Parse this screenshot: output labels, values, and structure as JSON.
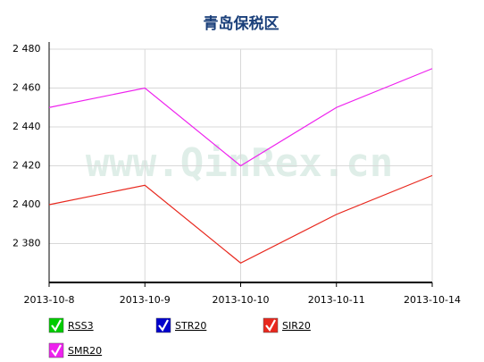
{
  "chart_data": {
    "type": "line",
    "title": "青岛保税区",
    "watermark": "www.QinRex.cn",
    "categories": [
      "2013-10-8",
      "2013-10-9",
      "2013-10-10",
      "2013-10-11",
      "2013-10-14"
    ],
    "series": [
      {
        "name": "RSS3",
        "color": "#00cc00",
        "values": [
          null,
          null,
          null,
          null,
          null
        ]
      },
      {
        "name": "STR20",
        "color": "#0000cc",
        "values": [
          null,
          null,
          null,
          null,
          null
        ]
      },
      {
        "name": "SIR20",
        "color": "#e8281e",
        "values": [
          2400,
          2410,
          2370,
          2395,
          2415
        ]
      },
      {
        "name": "SMR20",
        "color": "#ee22ee",
        "values": [
          2450,
          2460,
          2420,
          2450,
          2470
        ]
      }
    ],
    "ylim": [
      2360,
      2480
    ],
    "yticks": [
      {
        "value": 2380,
        "label": "2 380"
      },
      {
        "value": 2400,
        "label": "2 400"
      },
      {
        "value": 2420,
        "label": "2 420"
      },
      {
        "value": 2440,
        "label": "2 440"
      },
      {
        "value": 2460,
        "label": "2 460"
      },
      {
        "value": 2480,
        "label": "2 480"
      }
    ],
    "grid": true
  }
}
